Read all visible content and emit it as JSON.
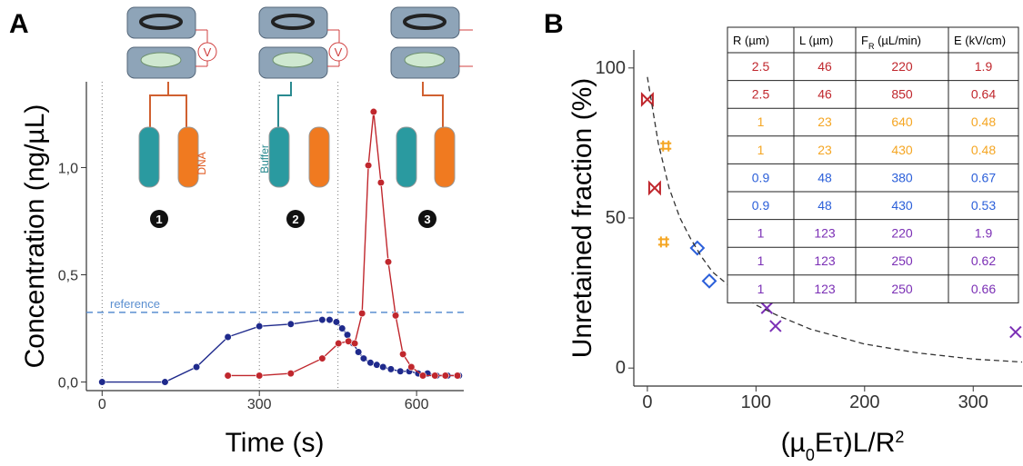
{
  "chart_data": [
    {
      "type": "line",
      "panel_label": "A",
      "x_label": "Time (s)",
      "y_label": "Concentration (ng/µL)",
      "xlim": [
        -30,
        690
      ],
      "ylim": [
        -0.04,
        1.4
      ],
      "xticks": [
        0,
        300,
        600
      ],
      "yticks": [
        {
          "value": 0,
          "label": "0,0"
        },
        {
          "value": 0.5,
          "label": "0,5"
        },
        {
          "value": 1,
          "label": "1,0"
        }
      ],
      "vlines": [
        0,
        300,
        450
      ],
      "reference": {
        "value": 0.325,
        "label": "reference"
      },
      "annotations": {
        "dna": "DNA",
        "buffer": "Buffer",
        "steps": [
          "1",
          "2",
          "3"
        ],
        "voltage": [
          "V",
          "V"
        ]
      },
      "series": [
        {
          "color": "#1f2a8c",
          "marker": "circle",
          "x": [
            0,
            120,
            180,
            240,
            300,
            360,
            420,
            434,
            447,
            458,
            468,
            479,
            489,
            499,
            512,
            524,
            536,
            551,
            569,
            586,
            603,
            621,
            638,
            659,
            681
          ],
          "values": [
            0,
            0,
            0.07,
            0.21,
            0.26,
            0.27,
            0.29,
            0.29,
            0.28,
            0.25,
            0.22,
            0.18,
            0.14,
            0.11,
            0.09,
            0.08,
            0.07,
            0.06,
            0.05,
            0.05,
            0.04,
            0.04,
            0.03,
            0.03,
            0.03
          ]
        },
        {
          "color": "#c0272d",
          "marker": "circle",
          "x": [
            240,
            300,
            360,
            420,
            451,
            470,
            482,
            496,
            508,
            518,
            532,
            546,
            560,
            574,
            590,
            612,
            635,
            655,
            678
          ],
          "values": [
            0.03,
            0.03,
            0.04,
            0.11,
            0.18,
            0.19,
            0.18,
            0.32,
            1.01,
            1.26,
            0.93,
            0.56,
            0.31,
            0.13,
            0.07,
            0.03,
            0.03,
            0.03,
            0.03
          ]
        }
      ]
    },
    {
      "type": "scatter",
      "panel_label": "B",
      "x_label": [
        "(µ",
        "0",
        "Eτ)L/R",
        "2"
      ],
      "y_label": "Unretained fraction (%)",
      "xlim": [
        -12.5,
        345
      ],
      "ylim": [
        -6,
        106
      ],
      "xticks": [
        0,
        100,
        200,
        300
      ],
      "yticks": [
        0,
        50,
        100
      ],
      "series": [
        {
          "color": "#c0272d",
          "marker": "bowtie",
          "x": [
            0,
            6.7
          ],
          "values": [
            89.5,
            60
          ]
        },
        {
          "color": "#f5a623",
          "marker": "hash",
          "x": [
            17,
            15
          ],
          "values": [
            74,
            42
          ]
        },
        {
          "color": "#2b5fd9",
          "marker": "diamond",
          "x": [
            46,
            57
          ],
          "values": [
            40,
            29
          ]
        },
        {
          "color": "#7b2fb5",
          "marker": "cross",
          "x": [
            110,
            118,
            339
          ],
          "values": [
            20,
            14,
            12
          ]
        },
        {
          "color": "#333333",
          "marker": "dashed-line",
          "x": [
            0,
            10,
            20,
            30,
            40,
            50,
            60,
            80,
            100,
            120,
            150,
            200,
            250,
            300,
            345
          ],
          "values": [
            97,
            75,
            60,
            50,
            43,
            37,
            32,
            26,
            21,
            17.5,
            13,
            8,
            5,
            3,
            2
          ]
        }
      ],
      "table": {
        "columns": [
          "R (µm)",
          "L (µm)",
          [
            "F",
            "R",
            " (µL/min)"
          ],
          "E (kV/cm)"
        ],
        "row_colors": [
          "#c0272d",
          "#c0272d",
          "#f5a623",
          "#f5a623",
          "#2b5fd9",
          "#2b5fd9",
          "#7b2fb5",
          "#7b2fb5",
          "#7b2fb5"
        ],
        "rows": [
          [
            "2.5",
            "46",
            "220",
            "1.9"
          ],
          [
            "2.5",
            "46",
            "850",
            "0.64"
          ],
          [
            "1",
            "23",
            "640",
            "0.48"
          ],
          [
            "1",
            "23",
            "430",
            "0.48"
          ],
          [
            "0.9",
            "48",
            "380",
            "0.67"
          ],
          [
            "0.9",
            "48",
            "430",
            "0.53"
          ],
          [
            "1",
            "123",
            "220",
            "1.9"
          ],
          [
            "1",
            "123",
            "250",
            "0.62"
          ],
          [
            "1",
            "123",
            "250",
            "0.66"
          ]
        ]
      }
    }
  ]
}
